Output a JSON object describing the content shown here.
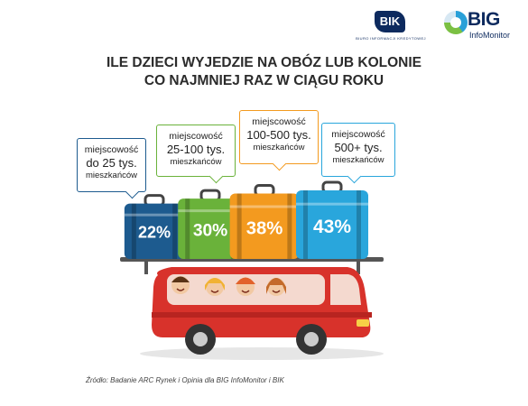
{
  "logos": {
    "bik": {
      "name": "BIK",
      "tagline": "BIURO INFORMACJI KREDYTOWEJ"
    },
    "big": {
      "name": "BIG",
      "tagline": "InfoMonitor"
    }
  },
  "chart_data": {
    "type": "bar",
    "title": "ILE DZIECI WYJEDZIE NA OBÓZ LUB KOLONIE",
    "subtitle": "CO NAJMNIEJ RAZ W CIĄGU ROKU",
    "categories": [
      {
        "line1": "miejscowość",
        "line2": "do 25 tys.",
        "line3": "mieszkańców"
      },
      {
        "line1": "miejscowość",
        "line2": "25-100 tys.",
        "line3": "mieszkańców"
      },
      {
        "line1": "miejscowość",
        "line2": "100-500 tys.",
        "line3": "mieszkańców"
      },
      {
        "line1": "miejscowość",
        "line2": "500+ tys.",
        "line3": "mieszkańców"
      }
    ],
    "values": [
      22,
      30,
      38,
      43
    ],
    "value_labels": [
      "22%",
      "30%",
      "38%",
      "43%"
    ],
    "unit": "%",
    "colors": [
      "#1d5b8f",
      "#6ab23a",
      "#f39a1f",
      "#29a6dc"
    ]
  },
  "colors": {
    "bus": "#d8322b",
    "title": "#2b2b2b"
  },
  "source": "Źródło: Badanie ARC Rynek i Opinia dla BIG InfoMonitor i BIK"
}
